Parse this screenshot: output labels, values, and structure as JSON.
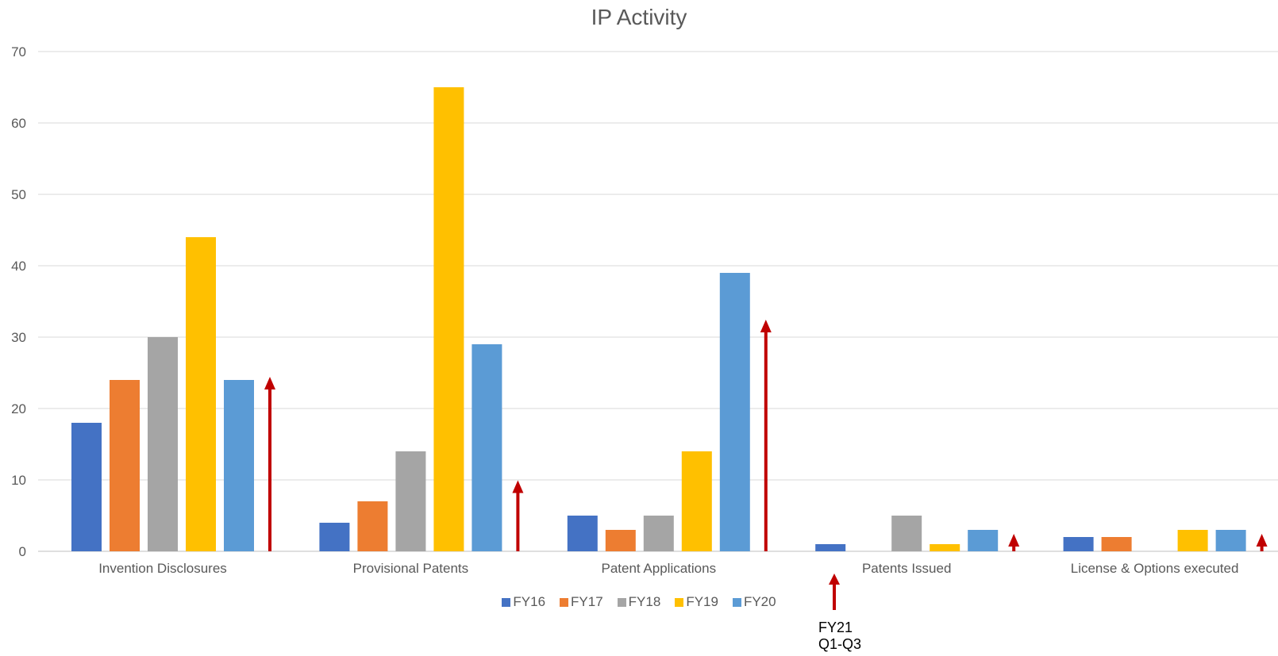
{
  "chart_data": {
    "type": "bar",
    "title": "IP Activity",
    "categories": [
      "Invention Disclosures",
      "Provisional Patents",
      "Patent Applications",
      "Patents Issued",
      "License & Options executed"
    ],
    "series": [
      {
        "name": "FY16",
        "values": [
          18,
          4,
          5,
          1,
          2
        ],
        "color": "#4472C4"
      },
      {
        "name": "FY17",
        "values": [
          24,
          7,
          3,
          0,
          2
        ],
        "color": "#ED7D31"
      },
      {
        "name": "FY18",
        "values": [
          30,
          14,
          5,
          5,
          0
        ],
        "color": "#A5A5A5"
      },
      {
        "name": "FY19",
        "values": [
          44,
          65,
          14,
          1,
          3
        ],
        "color": "#FFC000"
      },
      {
        "name": "FY20",
        "values": [
          24,
          29,
          39,
          3,
          3
        ],
        "color": "#5B9BD5"
      }
    ],
    "fy21_arrows": {
      "label": "FY21 Q1-Q3",
      "values": [
        24,
        9.5,
        32,
        2,
        2
      ],
      "color": "#C00000"
    },
    "ylim": [
      0,
      70
    ],
    "yticks": [
      0,
      10,
      20,
      30,
      40,
      50,
      60,
      70
    ],
    "grid": true,
    "legend_position": "bottom",
    "xlabel": "",
    "ylabel": ""
  },
  "annotation": {
    "line1": "FY21",
    "line2": "Q1-Q3"
  }
}
